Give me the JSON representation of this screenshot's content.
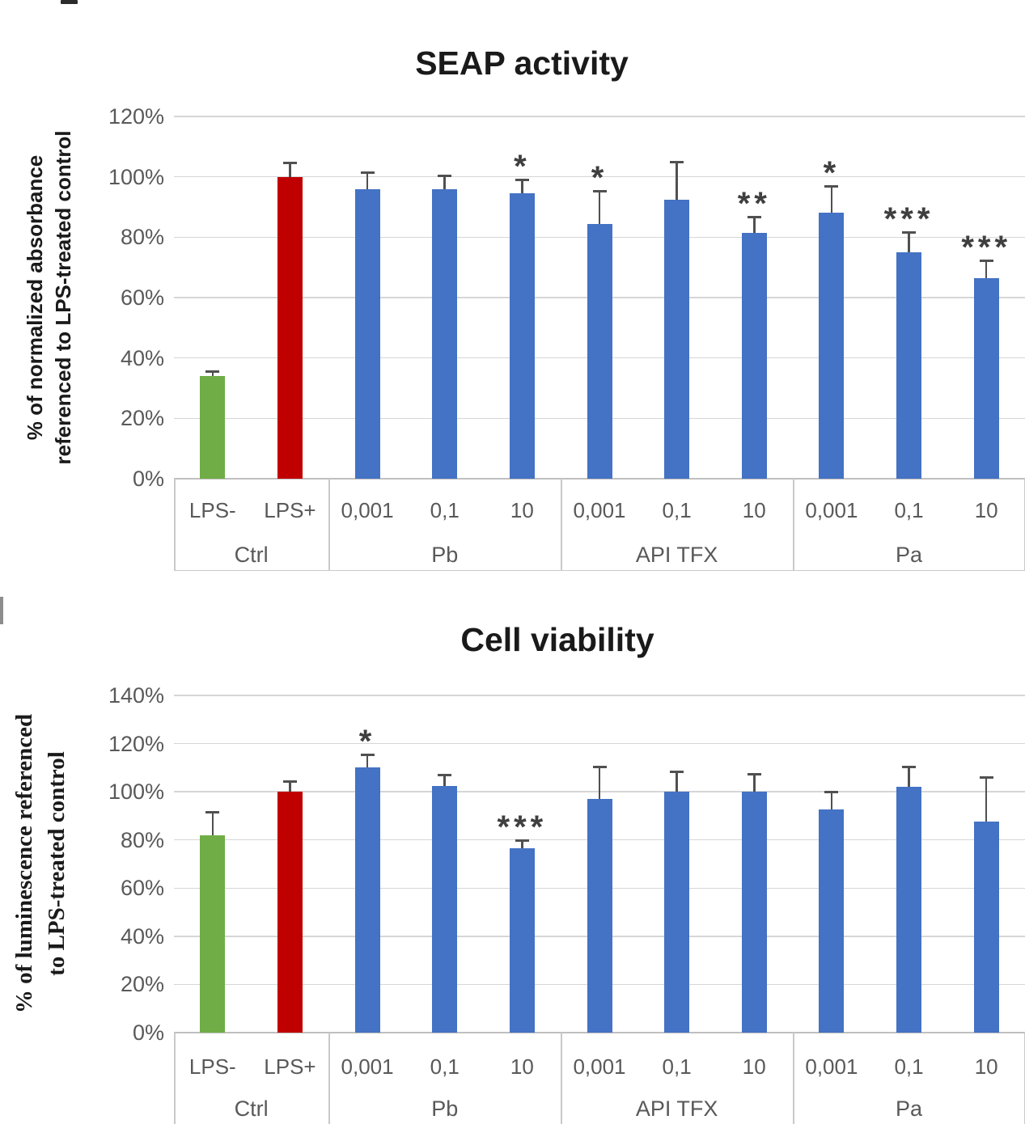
{
  "chart_data": [
    {
      "type": "bar",
      "title": "SEAP activity",
      "ylabel_lines": [
        "% of normalized absorbance",
        "referenced to LPS-treated control"
      ],
      "ylabel_font": "sans",
      "ylim": [
        0,
        120
      ],
      "ytick_step": 20,
      "ytick_labels": [
        "120%",
        "100%",
        "80%",
        "60%",
        "40%",
        "20%",
        "0%"
      ],
      "grid": true,
      "legend": "none",
      "groups": [
        {
          "label": "Ctrl",
          "bars": [
            {
              "tick": "LPS-",
              "value": 34,
              "err_top": 35.5,
              "color": "green",
              "sig": ""
            },
            {
              "tick": "LPS+",
              "value": 100,
              "err_top": 104.7,
              "color": "red",
              "sig": ""
            }
          ]
        },
        {
          "label": "Pb",
          "bars": [
            {
              "tick": "0,001",
              "value": 96,
              "err_top": 101.5,
              "color": "blue",
              "sig": ""
            },
            {
              "tick": "0,1",
              "value": 96,
              "err_top": 100.5,
              "color": "blue",
              "sig": ""
            },
            {
              "tick": "10",
              "value": 94.5,
              "err_top": 99,
              "color": "blue",
              "sig": "*"
            }
          ]
        },
        {
          "label": "API TFX",
          "bars": [
            {
              "tick": "0,001",
              "value": 84.5,
              "err_top": 95.3,
              "color": "blue",
              "sig": "*"
            },
            {
              "tick": "0,1",
              "value": 92.5,
              "err_top": 105,
              "color": "blue",
              "sig": ""
            },
            {
              "tick": "10",
              "value": 81.5,
              "err_top": 86.7,
              "color": "blue",
              "sig": "**"
            }
          ]
        },
        {
          "label": "Pa",
          "bars": [
            {
              "tick": "0,001",
              "value": 88,
              "err_top": 97,
              "color": "blue",
              "sig": "*"
            },
            {
              "tick": "0,1",
              "value": 75,
              "err_top": 81.6,
              "color": "blue",
              "sig": "***"
            },
            {
              "tick": "10",
              "value": 66.5,
              "err_top": 72.2,
              "color": "blue",
              "sig": "***"
            }
          ]
        }
      ]
    },
    {
      "type": "bar",
      "title": "Cell viability",
      "ylabel_lines": [
        "% of luminescence referenced",
        "to LPS-treated control"
      ],
      "ylabel_font": "serif",
      "ylim": [
        0,
        140
      ],
      "ytick_step": 20,
      "ytick_labels": [
        "140%",
        "120%",
        "100%",
        "80%",
        "60%",
        "40%",
        "20%",
        "0%"
      ],
      "grid": true,
      "legend": "none",
      "groups": [
        {
          "label": "Ctrl",
          "bars": [
            {
              "tick": "LPS-",
              "value": 82,
              "err_top": 91.5,
              "color": "green",
              "sig": ""
            },
            {
              "tick": "LPS+",
              "value": 100,
              "err_top": 104.3,
              "color": "red",
              "sig": ""
            }
          ]
        },
        {
          "label": "Pb",
          "bars": [
            {
              "tick": "0,001",
              "value": 110,
              "err_top": 115.5,
              "color": "blue",
              "sig": "*"
            },
            {
              "tick": "0,1",
              "value": 102.5,
              "err_top": 107,
              "color": "blue",
              "sig": ""
            },
            {
              "tick": "10",
              "value": 76.5,
              "err_top": 80,
              "color": "blue",
              "sig": "***"
            }
          ]
        },
        {
          "label": "API TFX",
          "bars": [
            {
              "tick": "0,001",
              "value": 97,
              "err_top": 110.5,
              "color": "blue",
              "sig": ""
            },
            {
              "tick": "0,1",
              "value": 100,
              "err_top": 108.5,
              "color": "blue",
              "sig": ""
            },
            {
              "tick": "10",
              "value": 100,
              "err_top": 107.5,
              "color": "blue",
              "sig": ""
            }
          ]
        },
        {
          "label": "Pa",
          "bars": [
            {
              "tick": "0,001",
              "value": 92.5,
              "err_top": 100,
              "color": "blue",
              "sig": ""
            },
            {
              "tick": "0,1",
              "value": 102,
              "err_top": 110.5,
              "color": "blue",
              "sig": ""
            },
            {
              "tick": "10",
              "value": 87.5,
              "err_top": 106,
              "color": "blue",
              "sig": ""
            }
          ]
        }
      ]
    }
  ],
  "colors": {
    "blue": "#4472C4",
    "green": "#70AD47",
    "red": "#C00000",
    "gridline": "#D6D6D6",
    "axis_line": "#BFBFBF",
    "axis_box_border": "#C9C9C9",
    "tick_label": "#595959",
    "error_bar": "#505050",
    "sig_star": "#3F3F3F",
    "title": "#1A1A1A"
  }
}
